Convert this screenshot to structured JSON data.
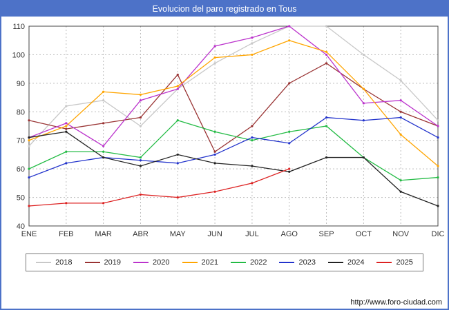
{
  "header": {
    "title": "Evolucion del paro registrado en Tous"
  },
  "footer": {
    "url": "http://www.foro-ciudad.com"
  },
  "colors": {
    "frame": "#4d72c8",
    "titlebar": "#4d72c8",
    "grid": "#bbbbbb",
    "axis": "#444444"
  },
  "chart_data": {
    "type": "line",
    "title": "Evolucion del paro registrado en Tous",
    "categories": [
      "ENE",
      "FEB",
      "MAR",
      "ABR",
      "MAY",
      "JUN",
      "JUL",
      "AGO",
      "SEP",
      "OCT",
      "NOV",
      "DIC"
    ],
    "ylim": [
      40,
      110
    ],
    "y_step": 10,
    "grid": true,
    "legend_position": "bottom",
    "series": [
      {
        "name": "2018",
        "color": "#c8c8c8",
        "values": [
          68,
          82,
          84,
          75,
          88,
          97,
          104,
          110,
          110,
          100,
          91,
          77
        ]
      },
      {
        "name": "2019",
        "color": "#993333",
        "values": [
          77,
          74,
          76,
          78,
          93,
          66,
          75,
          90,
          97,
          88,
          80,
          75
        ]
      },
      {
        "name": "2020",
        "color": "#bb33cc",
        "values": [
          71,
          76,
          68,
          84,
          88,
          103,
          106,
          110,
          100,
          83,
          84,
          75
        ]
      },
      {
        "name": "2021",
        "color": "#ffa500",
        "values": [
          70,
          75,
          87,
          86,
          89,
          99,
          100,
          105,
          101,
          88,
          72,
          61
        ]
      },
      {
        "name": "2022",
        "color": "#22bb44",
        "values": [
          60,
          66,
          66,
          64,
          77,
          73,
          70,
          73,
          75,
          64,
          56,
          57
        ]
      },
      {
        "name": "2023",
        "color": "#2233cc",
        "values": [
          57,
          62,
          64,
          63,
          62,
          65,
          71,
          69,
          78,
          77,
          78,
          71
        ]
      },
      {
        "name": "2024",
        "color": "#222222",
        "values": [
          71,
          73,
          64,
          61,
          65,
          62,
          61,
          59,
          64,
          64,
          52,
          47
        ]
      },
      {
        "name": "2025",
        "color": "#dd2222",
        "values": [
          47,
          48,
          48,
          51,
          50,
          52,
          55,
          60,
          null,
          null,
          null,
          null
        ]
      }
    ]
  }
}
